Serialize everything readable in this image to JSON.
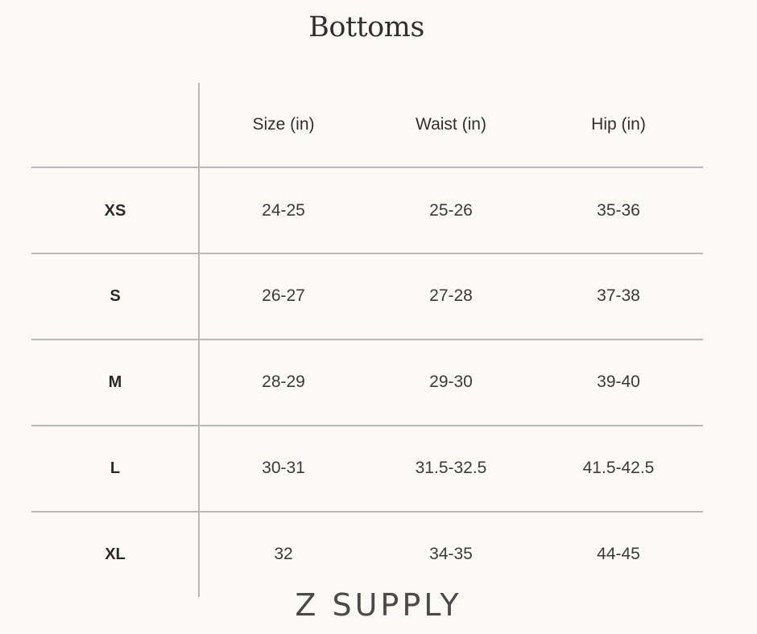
{
  "title": "Bottoms",
  "headers": [
    "Size (in)",
    "Waist (in)",
    "Hip (in)"
  ],
  "rows": [
    {
      "label": "XS",
      "values": [
        "24-25",
        "25-26",
        "35-36"
      ]
    },
    {
      "label": "S",
      "values": [
        "26-27",
        "27-28",
        "37-38"
      ]
    },
    {
      "label": "M",
      "values": [
        "28-29",
        "29-30",
        "39-40"
      ]
    },
    {
      "label": "L",
      "values": [
        "30-31",
        "31.5-32.5",
        "41.5-42.5"
      ]
    },
    {
      "label": "XL",
      "values": [
        "32",
        "34-35",
        "44-45"
      ]
    }
  ],
  "brand": "Z SUPPLY",
  "colors": {
    "background": "#fbfaf7",
    "gridline": "#b9b9b9",
    "text": "#3a3a3a"
  }
}
